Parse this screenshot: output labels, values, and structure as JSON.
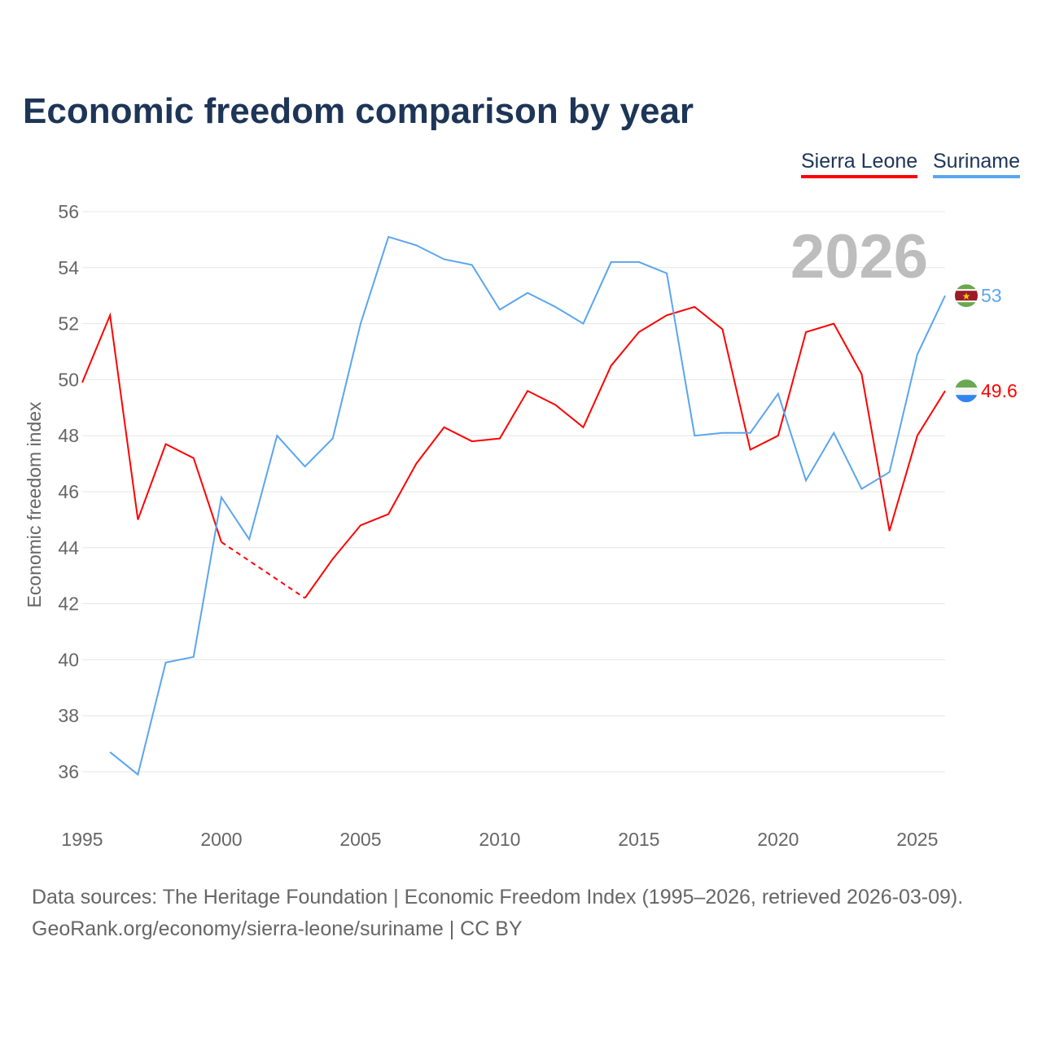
{
  "title": "Economic freedom comparison by year",
  "footer": {
    "line1": "Data sources: The Heritage Foundation | Economic Freedom Index (1995–2026, retrieved 2026-03-09).",
    "line2": "GeoRank.org/economy/sierra-leone/suriname | CC BY"
  },
  "chart_data": {
    "type": "line",
    "title": "Economic freedom comparison by year",
    "ylabel": "Economic freedom index",
    "xlabel": "",
    "year_watermark": "2026",
    "ylim": [
      34.5,
      56
    ],
    "yticks": [
      36,
      38,
      40,
      42,
      44,
      46,
      48,
      50,
      52,
      54,
      56
    ],
    "xlim": [
      1995,
      2026
    ],
    "xticks": [
      1995,
      2000,
      2005,
      2010,
      2015,
      2020,
      2025
    ],
    "grid": true,
    "legend_position": "top-right",
    "x": [
      1995,
      1996,
      1997,
      1998,
      1999,
      2000,
      2001,
      2002,
      2003,
      2004,
      2005,
      2006,
      2007,
      2008,
      2009,
      2010,
      2011,
      2012,
      2013,
      2014,
      2015,
      2016,
      2017,
      2018,
      2019,
      2020,
      2021,
      2022,
      2023,
      2024,
      2025,
      2026
    ],
    "series": [
      {
        "name": "Sierra Leone",
        "color": "#ff0000",
        "end_label": "49.6",
        "values": [
          49.9,
          52.3,
          45.0,
          47.7,
          47.2,
          44.2,
          null,
          null,
          42.2,
          43.6,
          44.8,
          45.2,
          47.0,
          48.3,
          47.8,
          47.9,
          49.6,
          49.1,
          48.3,
          50.5,
          51.7,
          52.3,
          52.6,
          51.8,
          47.5,
          48.0,
          51.7,
          52.0,
          50.2,
          44.6,
          48.0,
          49.6
        ]
      },
      {
        "name": "Suriname",
        "color": "#5aa5f0",
        "end_label": "53",
        "values": [
          null,
          36.7,
          35.9,
          39.9,
          40.1,
          45.8,
          44.3,
          48.0,
          46.9,
          47.9,
          52.0,
          55.1,
          54.8,
          54.3,
          54.1,
          52.5,
          53.1,
          52.6,
          52.0,
          54.2,
          54.2,
          53.8,
          48.0,
          48.1,
          48.1,
          49.5,
          46.4,
          48.1,
          46.1,
          46.7,
          50.9,
          53.0
        ]
      }
    ]
  }
}
